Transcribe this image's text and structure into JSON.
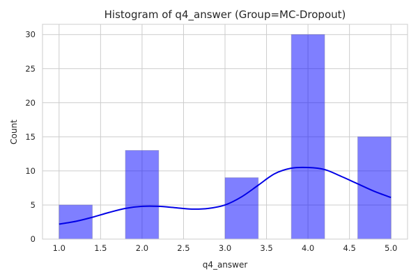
{
  "chart_data": {
    "type": "bar",
    "title": "Histogram of q4_answer (Group=MC-Dropout)",
    "xlabel": "q4_answer",
    "ylabel": "Count",
    "xlim": [
      0.8,
      5.2
    ],
    "ylim": [
      0,
      31.5
    ],
    "grid": true,
    "xticks": [
      "1.0",
      "1.5",
      "2.0",
      "2.5",
      "3.0",
      "3.5",
      "4.0",
      "4.5",
      "5.0"
    ],
    "xtick_values": [
      1.0,
      1.5,
      2.0,
      2.5,
      3.0,
      3.5,
      4.0,
      4.5,
      5.0
    ],
    "yticks": [
      "0",
      "5",
      "10",
      "15",
      "20",
      "25",
      "30"
    ],
    "ytick_values": [
      0,
      5,
      10,
      15,
      20,
      25,
      30
    ],
    "bins": [
      {
        "x0": 1.0,
        "x1": 1.4,
        "count": 5
      },
      {
        "x0": 1.8,
        "x1": 2.2,
        "count": 13
      },
      {
        "x0": 3.0,
        "x1": 3.4,
        "count": 9
      },
      {
        "x0": 3.8,
        "x1": 4.2,
        "count": 30
      },
      {
        "x0": 4.6,
        "x1": 5.0,
        "count": 15
      }
    ],
    "kde": {
      "x": [
        1.0,
        1.2,
        1.4,
        1.6,
        1.8,
        2.0,
        2.2,
        2.4,
        2.6,
        2.8,
        3.0,
        3.2,
        3.4,
        3.6,
        3.8,
        4.0,
        4.2,
        4.4,
        4.6,
        4.8,
        5.0
      ],
      "y": [
        2.2,
        2.6,
        3.2,
        3.9,
        4.5,
        4.8,
        4.8,
        4.6,
        4.4,
        4.5,
        5.0,
        6.2,
        7.9,
        9.6,
        10.4,
        10.5,
        10.2,
        9.2,
        8.1,
        7.0,
        6.1
      ]
    },
    "colors": {
      "bar": "#0000ff",
      "kde": "#0000e6",
      "grid": "#cccccc"
    }
  }
}
